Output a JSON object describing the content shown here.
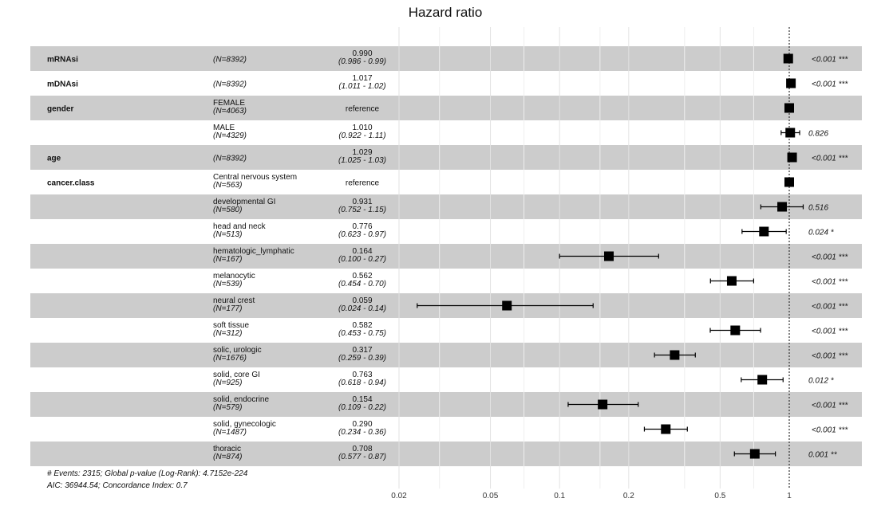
{
  "chart_data": {
    "type": "forest",
    "title": "Hazard ratio",
    "x_scale": "log",
    "xlim": [
      0.016,
      1.6
    ],
    "x_ticks": [
      0.02,
      0.05,
      0.1,
      0.2,
      0.5,
      1
    ],
    "x_tick_labels": [
      "0.02",
      "0.05",
      "0.1",
      "0.2",
      "0.5",
      "1"
    ],
    "reference_line": 1,
    "rows": [
      {
        "variable": "mRNAsi",
        "level": "",
        "n": "(N=8392)",
        "hr": 0.99,
        "lo": 0.986,
        "hi": 0.99,
        "estimate_text": "0.990",
        "ci_text": "(0.986 - 0.99)",
        "p_text": "<0.001 ***"
      },
      {
        "variable": "mDNAsi",
        "level": "",
        "n": "(N=8392)",
        "hr": 1.017,
        "lo": 1.011,
        "hi": 1.02,
        "estimate_text": "1.017",
        "ci_text": "(1.011 - 1.02)",
        "p_text": "<0.001 ***"
      },
      {
        "variable": "gender",
        "level": "FEMALE",
        "n": "(N=4063)",
        "hr": 1,
        "lo": null,
        "hi": null,
        "estimate_text": "reference",
        "ci_text": "",
        "p_text": ""
      },
      {
        "variable": "",
        "level": "MALE",
        "n": "(N=4329)",
        "hr": 1.01,
        "lo": 0.922,
        "hi": 1.11,
        "estimate_text": "1.010",
        "ci_text": "(0.922 - 1.11)",
        "p_text": "0.826"
      },
      {
        "variable": "age",
        "level": "",
        "n": "(N=8392)",
        "hr": 1.029,
        "lo": 1.025,
        "hi": 1.03,
        "estimate_text": "1.029",
        "ci_text": "(1.025 - 1.03)",
        "p_text": "<0.001 ***"
      },
      {
        "variable": "cancer.class",
        "level": "Central nervous system",
        "n": "(N=563)",
        "hr": 1,
        "lo": null,
        "hi": null,
        "estimate_text": "reference",
        "ci_text": "",
        "p_text": ""
      },
      {
        "variable": "",
        "level": "developmental GI",
        "n": "(N=580)",
        "hr": 0.931,
        "lo": 0.752,
        "hi": 1.15,
        "estimate_text": "0.931",
        "ci_text": "(0.752 - 1.15)",
        "p_text": "0.516"
      },
      {
        "variable": "",
        "level": "head and neck",
        "n": "(N=513)",
        "hr": 0.776,
        "lo": 0.623,
        "hi": 0.97,
        "estimate_text": "0.776",
        "ci_text": "(0.623 - 0.97)",
        "p_text": "0.024 *"
      },
      {
        "variable": "",
        "level": "hematologic_lymphatic",
        "n": "(N=167)",
        "hr": 0.164,
        "lo": 0.1,
        "hi": 0.27,
        "estimate_text": "0.164",
        "ci_text": "(0.100 - 0.27)",
        "p_text": "<0.001 ***"
      },
      {
        "variable": "",
        "level": "melanocytic",
        "n": "(N=539)",
        "hr": 0.562,
        "lo": 0.454,
        "hi": 0.7,
        "estimate_text": "0.562",
        "ci_text": "(0.454 - 0.70)",
        "p_text": "<0.001 ***"
      },
      {
        "variable": "",
        "level": "neural crest",
        "n": "(N=177)",
        "hr": 0.059,
        "lo": 0.024,
        "hi": 0.14,
        "estimate_text": "0.059",
        "ci_text": "(0.024 - 0.14)",
        "p_text": "<0.001 ***"
      },
      {
        "variable": "",
        "level": "soft tissue",
        "n": "(N=312)",
        "hr": 0.582,
        "lo": 0.453,
        "hi": 0.75,
        "estimate_text": "0.582",
        "ci_text": "(0.453 - 0.75)",
        "p_text": "<0.001 ***"
      },
      {
        "variable": "",
        "level": "solic, urologic",
        "n": "(N=1676)",
        "hr": 0.317,
        "lo": 0.259,
        "hi": 0.39,
        "estimate_text": "0.317",
        "ci_text": "(0.259 - 0.39)",
        "p_text": "<0.001 ***"
      },
      {
        "variable": "",
        "level": "solid, core GI",
        "n": "(N=925)",
        "hr": 0.763,
        "lo": 0.618,
        "hi": 0.94,
        "estimate_text": "0.763",
        "ci_text": "(0.618 - 0.94)",
        "p_text": "0.012 *"
      },
      {
        "variable": "",
        "level": "solid, endocrine",
        "n": "(N=579)",
        "hr": 0.154,
        "lo": 0.109,
        "hi": 0.22,
        "estimate_text": "0.154",
        "ci_text": "(0.109 - 0.22)",
        "p_text": "<0.001 ***"
      },
      {
        "variable": "",
        "level": "solid, gynecologic",
        "n": "(N=1487)",
        "hr": 0.29,
        "lo": 0.234,
        "hi": 0.36,
        "estimate_text": "0.290",
        "ci_text": "(0.234 - 0.36)",
        "p_text": "<0.001 ***"
      },
      {
        "variable": "",
        "level": "thoracic",
        "n": "(N=874)",
        "hr": 0.708,
        "lo": 0.577,
        "hi": 0.87,
        "estimate_text": "0.708",
        "ci_text": "(0.577 - 0.87)",
        "p_text": "0.001 **"
      }
    ],
    "footnotes": [
      "# Events: 2315; Global p-value (Log-Rank): 4.7152e-224",
      "AIC: 36944.54; Concordance Index: 0.7"
    ],
    "colors": {
      "stripe": "#cccccc",
      "marker": "#000000",
      "reference_line": "#333333",
      "grid": "#e2e2e2"
    }
  }
}
